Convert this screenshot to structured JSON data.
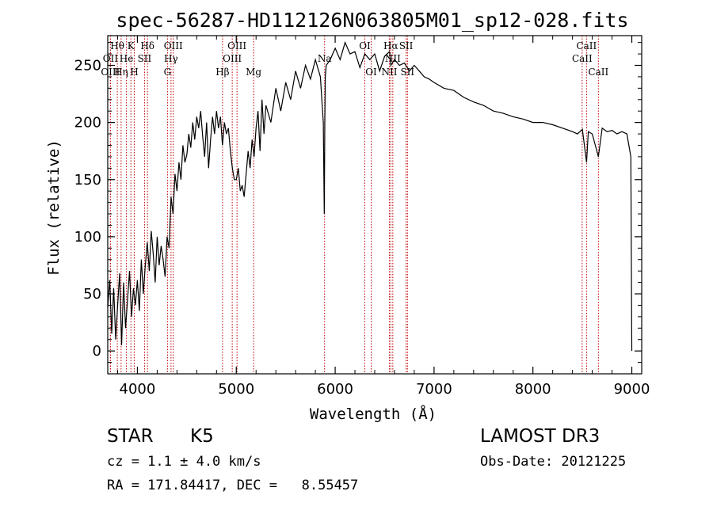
{
  "chart_data": {
    "type": "line",
    "title": "spec-56287-HD112126N063805M01_sp12-028.fits",
    "xlabel": "Wavelength (Å)",
    "ylabel": "Flux (relative)",
    "xlim": [
      3700,
      9100
    ],
    "ylim": [
      -20,
      276
    ],
    "xticks": [
      4000,
      5000,
      6000,
      7000,
      8000,
      9000
    ],
    "yticks": [
      0,
      50,
      100,
      150,
      200,
      250
    ],
    "series": [
      {
        "name": "flux",
        "x": [
          3700,
          3720,
          3740,
          3760,
          3780,
          3800,
          3820,
          3840,
          3860,
          3880,
          3900,
          3920,
          3940,
          3960,
          3980,
          4000,
          4020,
          4040,
          4060,
          4080,
          4100,
          4120,
          4140,
          4160,
          4180,
          4200,
          4220,
          4240,
          4260,
          4280,
          4300,
          4320,
          4340,
          4360,
          4380,
          4400,
          4420,
          4440,
          4460,
          4480,
          4500,
          4520,
          4540,
          4560,
          4580,
          4600,
          4620,
          4640,
          4660,
          4680,
          4700,
          4720,
          4740,
          4760,
          4780,
          4800,
          4820,
          4840,
          4860,
          4880,
          4900,
          4920,
          4940,
          4960,
          4980,
          5000,
          5020,
          5040,
          5060,
          5080,
          5100,
          5120,
          5140,
          5160,
          5180,
          5200,
          5220,
          5240,
          5260,
          5280,
          5300,
          5350,
          5400,
          5450,
          5500,
          5550,
          5600,
          5650,
          5700,
          5750,
          5800,
          5850,
          5880,
          5890,
          5895,
          5900,
          5910,
          5950,
          6000,
          6050,
          6100,
          6150,
          6200,
          6250,
          6300,
          6350,
          6400,
          6450,
          6500,
          6550,
          6563,
          6600,
          6650,
          6700,
          6750,
          6800,
          6850,
          6900,
          6950,
          7000,
          7100,
          7200,
          7300,
          7400,
          7500,
          7600,
          7700,
          7800,
          7900,
          8000,
          8100,
          8200,
          8300,
          8400,
          8450,
          8500,
          8542,
          8560,
          8600,
          8662,
          8700,
          8750,
          8800,
          8850,
          8900,
          8950,
          8990,
          9000
        ],
        "values": [
          38,
          62,
          15,
          55,
          10,
          40,
          68,
          5,
          60,
          20,
          45,
          70,
          30,
          55,
          40,
          62,
          35,
          80,
          50,
          75,
          95,
          70,
          105,
          85,
          60,
          100,
          75,
          92,
          80,
          65,
          100,
          90,
          135,
          120,
          155,
          140,
          165,
          150,
          180,
          165,
          172,
          190,
          178,
          200,
          185,
          205,
          195,
          210,
          188,
          170,
          200,
          160,
          185,
          205,
          190,
          210,
          195,
          205,
          180,
          200,
          190,
          195,
          175,
          160,
          150,
          150,
          160,
          140,
          145,
          135,
          155,
          175,
          160,
          185,
          170,
          195,
          210,
          175,
          220,
          190,
          215,
          200,
          230,
          210,
          235,
          220,
          245,
          230,
          250,
          238,
          255,
          240,
          200,
          120,
          200,
          240,
          250,
          255,
          265,
          255,
          270,
          260,
          262,
          248,
          260,
          255,
          260,
          245,
          258,
          262,
          250,
          255,
          250,
          252,
          245,
          250,
          245,
          240,
          238,
          235,
          230,
          228,
          222,
          218,
          215,
          210,
          208,
          205,
          203,
          200,
          200,
          198,
          195,
          192,
          190,
          194,
          165,
          192,
          190,
          170,
          195,
          192,
          193,
          190,
          192,
          190,
          170,
          0
        ]
      }
    ],
    "spectral_lines": [
      {
        "label": "Hθ",
        "wave": 3797,
        "row": 1
      },
      {
        "label": "OII",
        "wave": 3727,
        "row": 2
      },
      {
        "label": "OIII",
        "wave": 3727,
        "row": 3
      },
      {
        "label": "Hη",
        "wave": 3835,
        "row": 3
      },
      {
        "label": "He",
        "wave": 3889,
        "row": 2
      },
      {
        "label": "K",
        "wave": 3934,
        "row": 1
      },
      {
        "label": "H",
        "wave": 3968,
        "row": 3
      },
      {
        "label": "SII",
        "wave": 4072,
        "row": 2
      },
      {
        "label": "Hδ",
        "wave": 4102,
        "row": 1
      },
      {
        "label": "OIII",
        "wave": 4363,
        "row": 1
      },
      {
        "label": "Hγ",
        "wave": 4340,
        "row": 2
      },
      {
        "label": "G",
        "wave": 4304,
        "row": 3
      },
      {
        "label": "Hβ",
        "wave": 4861,
        "row": 3
      },
      {
        "label": "OIII",
        "wave": 4959,
        "row": 2
      },
      {
        "label": "OIII",
        "wave": 5007,
        "row": 1
      },
      {
        "label": "Mg",
        "wave": 5175,
        "row": 3
      },
      {
        "label": "Na",
        "wave": 5893,
        "row": 2
      },
      {
        "label": "OI",
        "wave": 6300,
        "row": 1
      },
      {
        "label": "OI",
        "wave": 6364,
        "row": 3
      },
      {
        "label": "NII",
        "wave": 6548,
        "row": 3
      },
      {
        "label": "Hα",
        "wave": 6563,
        "row": 1
      },
      {
        "label": "NII",
        "wave": 6583,
        "row": 2
      },
      {
        "label": "SII",
        "wave": 6717,
        "row": 1
      },
      {
        "label": "SII",
        "wave": 6731,
        "row": 3
      },
      {
        "label": "CaII",
        "wave": 8498,
        "row": 2
      },
      {
        "label": "CaII",
        "wave": 8542,
        "row": 1
      },
      {
        "label": "CaII",
        "wave": 8662,
        "row": 3
      }
    ]
  },
  "info": {
    "object_class": "STAR",
    "subclass": "K5",
    "survey": "LAMOST DR3",
    "cz": "cz = 1.1 ± 4.0 km/s",
    "obs_date": "Obs-Date: 20121225",
    "coords": "RA = 171.84417, DEC =   8.55457"
  },
  "colors": {
    "line": "#000000",
    "marker": "#c00000",
    "background": "#ffffff"
  }
}
